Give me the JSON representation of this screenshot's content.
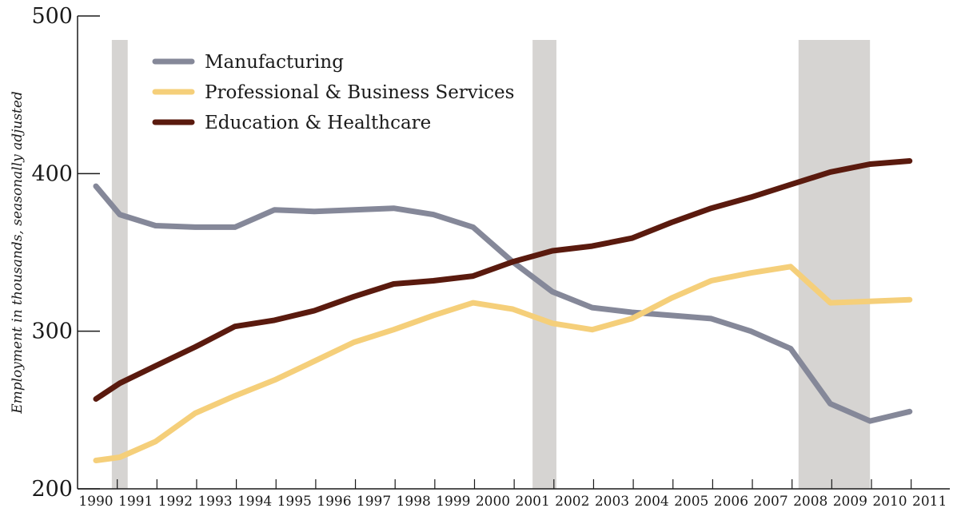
{
  "chart_data": {
    "type": "line",
    "ylabel": "Employment in thousands, seasonally adjusted",
    "xlabel": "",
    "ylim": [
      200,
      500
    ],
    "yticks": [
      200,
      300,
      400,
      500
    ],
    "xlim": [
      1990,
      2011
    ],
    "categories": [
      "1990",
      "1991",
      "1992",
      "1993",
      "1994",
      "1995",
      "1996",
      "1997",
      "1998",
      "1999",
      "2000",
      "2001",
      "2002",
      "2003",
      "2004",
      "2005",
      "2006",
      "2007",
      "2008",
      "2009",
      "2010",
      "2011"
    ],
    "recessions": [
      [
        1990.4,
        1990.8
      ],
      [
        2001.0,
        2001.6
      ],
      [
        2007.7,
        2009.5
      ]
    ],
    "legend_position": "top-left",
    "grid": false,
    "series": [
      {
        "name": "Manufacturing",
        "color": "#858899",
        "x": [
          1990,
          1990.6,
          1991.5,
          1992.5,
          1993.5,
          1994.5,
          1995.5,
          1996.5,
          1997.5,
          1998.5,
          1999.5,
          2000.5,
          2001.5,
          2002.5,
          2003.5,
          2004.5,
          2005.5,
          2006.5,
          2007.5,
          2008.5,
          2009.5,
          2010.5
        ],
        "values": [
          392,
          374,
          367,
          366,
          366,
          377,
          376,
          377,
          378,
          374,
          366,
          344,
          325,
          315,
          312,
          310,
          308,
          300,
          289,
          254,
          243,
          249
        ]
      },
      {
        "name": "Professional & Business Services",
        "color": "#f5cf7a",
        "x": [
          1990,
          1990.6,
          1991.5,
          1992.5,
          1993.5,
          1994.5,
          1995.5,
          1996.5,
          1997.5,
          1998.5,
          1999.5,
          2000.5,
          2001.5,
          2002.5,
          2003.5,
          2004.5,
          2005.5,
          2006.5,
          2007.5,
          2008.5,
          2009.5,
          2010.5
        ],
        "values": [
          218,
          220,
          230,
          248,
          259,
          269,
          281,
          293,
          301,
          310,
          318,
          314,
          305,
          301,
          308,
          321,
          332,
          337,
          341,
          318,
          319,
          320
        ]
      },
      {
        "name": "Education & Healthcare",
        "color": "#5a1a0e",
        "x": [
          1990,
          1990.6,
          1991.5,
          1992.5,
          1993.5,
          1994.5,
          1995.5,
          1996.5,
          1997.5,
          1998.5,
          1999.5,
          2000.5,
          2001.5,
          2002.5,
          2003.5,
          2004.5,
          2005.5,
          2006.5,
          2007.5,
          2008.5,
          2009.5,
          2010.5
        ],
        "values": [
          257,
          267,
          278,
          290,
          303,
          307,
          313,
          322,
          330,
          332,
          335,
          344,
          351,
          354,
          359,
          369,
          378,
          385,
          393,
          401,
          406,
          408
        ]
      }
    ]
  }
}
